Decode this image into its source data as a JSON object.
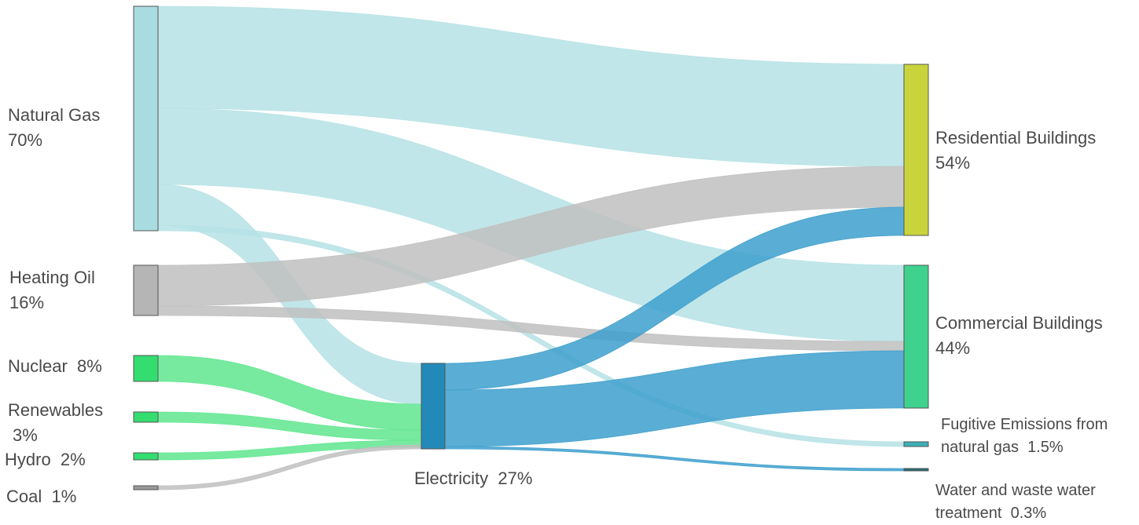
{
  "nodes": {
    "natural_gas": {
      "name": "Natural Gas",
      "pct": "70%",
      "color": "#a9dce0"
    },
    "heating_oil": {
      "name": "Heating Oil",
      "pct": "16%",
      "color": "#b5b5b5"
    },
    "nuclear": {
      "name": "Nuclear",
      "pct": "8%",
      "color": "#33dd6f"
    },
    "renewables": {
      "name": "Renewables",
      "pct": "3%",
      "color": "#33dd6f"
    },
    "hydro": {
      "name": "Hydro",
      "pct": "2%",
      "color": "#33dd6f"
    },
    "coal": {
      "name": "Coal",
      "pct": "1%",
      "color": "#999999"
    },
    "electricity": {
      "name": "Electricity",
      "pct": "27%",
      "color": "#2389b8"
    },
    "residential": {
      "name": "Residential Buildings",
      "pct": "54%",
      "color": "#c9d43c"
    },
    "commercial": {
      "name": "Commercial Buildings",
      "pct": "44%",
      "color": "#3fd18e"
    },
    "fugitive": {
      "name_line1": "Fugitive Emissions from",
      "name_line2": "natural gas",
      "pct": "1.5%",
      "color": "#3bb0b8"
    },
    "water": {
      "name_line1": "Water and waste water",
      "name_line2": "treatment",
      "pct": "0.3%",
      "color": "#1f6f78"
    }
  },
  "flows": [
    {
      "source": "natural_gas",
      "target": "residential",
      "color": "#b6e2e5"
    },
    {
      "source": "natural_gas",
      "target": "commercial",
      "color": "#b6e2e5"
    },
    {
      "source": "natural_gas",
      "target": "electricity",
      "color": "#b6e2e5"
    },
    {
      "source": "natural_gas",
      "target": "fugitive",
      "color": "#b6e2e5"
    },
    {
      "source": "heating_oil",
      "target": "residential",
      "color": "#c0c0c0"
    },
    {
      "source": "heating_oil",
      "target": "commercial",
      "color": "#c0c0c0"
    },
    {
      "source": "nuclear",
      "target": "electricity",
      "color": "#5fe68e"
    },
    {
      "source": "renewables",
      "target": "electricity",
      "color": "#5fe68e"
    },
    {
      "source": "hydro",
      "target": "electricity",
      "color": "#5fe68e"
    },
    {
      "source": "coal",
      "target": "electricity",
      "color": "#c0c0c0"
    },
    {
      "source": "electricity",
      "target": "residential",
      "color": "#3d9fcc"
    },
    {
      "source": "electricity",
      "target": "commercial",
      "color": "#3d9fcc"
    },
    {
      "source": "electricity",
      "target": "water",
      "color": "#3d9fcc"
    }
  ]
}
